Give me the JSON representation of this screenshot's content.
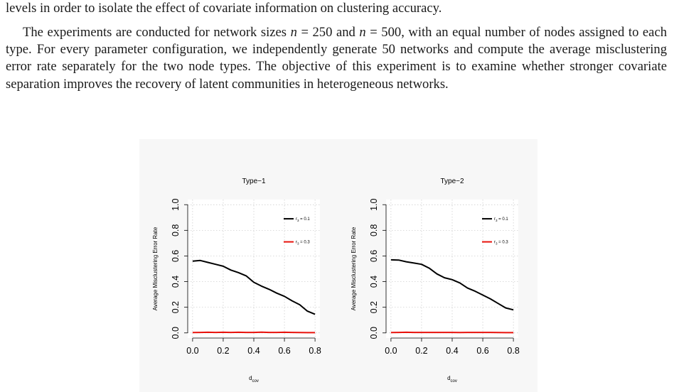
{
  "text": {
    "line1": "levels in order to isolate the effect of covariate information on clustering accuracy.",
    "p2_a": "The experiments are conducted for network sizes ",
    "p2_n": "n",
    "p2_eq": " = ",
    "p2_v1": "250",
    "p2_and": " and ",
    "p2_v2": "500",
    "p2_b": ", with an equal number of nodes assigned to each type. For every parameter configuration, we independently generate 50 networks and compute the average misclustering error rate separately for the two node types. The objective of this experiment is to examine whether stronger covariate separation improves the recovery of latent communities in heterogeneous networks."
  },
  "figure": {
    "ylabel": "Average Misclustering Error Rate",
    "xlabel_main": "d",
    "xlabel_sub": "cov"
  },
  "chart_data": [
    {
      "type": "line",
      "title": "Type−1",
      "xlabel": "d_cov",
      "ylabel": "Average Misclustering Error Rate",
      "xlim": [
        0,
        0.8
      ],
      "ylim": [
        0,
        1.0
      ],
      "xticks": [
        "0.0",
        "0.2",
        "0.4",
        "0.6",
        "0.8"
      ],
      "yticks": [
        "0.0",
        "0.2",
        "0.4",
        "0.6",
        "0.8",
        "1.0"
      ],
      "grid": true,
      "legend_position": "top-right",
      "x": [
        0.0,
        0.05,
        0.1,
        0.15,
        0.2,
        0.25,
        0.3,
        0.35,
        0.4,
        0.45,
        0.5,
        0.55,
        0.6,
        0.65,
        0.7,
        0.75,
        0.8
      ],
      "series": [
        {
          "legend_main": "r",
          "legend_sub": "3",
          "legend_rest": " = 0.1",
          "color": "#000000",
          "values": [
            0.56,
            0.565,
            0.55,
            0.535,
            0.52,
            0.49,
            0.47,
            0.445,
            0.395,
            0.365,
            0.34,
            0.31,
            0.285,
            0.25,
            0.22,
            0.17,
            0.145
          ]
        },
        {
          "legend_main": "r",
          "legend_sub": "3",
          "legend_rest": " = 0.3",
          "color": "#e8120c",
          "values": [
            0.003,
            0.004,
            0.005,
            0.004,
            0.005,
            0.004,
            0.005,
            0.004,
            0.004,
            0.006,
            0.004,
            0.004,
            0.005,
            0.004,
            0.003,
            0.002,
            0.002
          ]
        }
      ]
    },
    {
      "type": "line",
      "title": "Type−2",
      "xlabel": "d_cov",
      "ylabel": "Average Misclustering Error Rate",
      "xlim": [
        0,
        0.8
      ],
      "ylim": [
        0,
        1.0
      ],
      "xticks": [
        "0.0",
        "0.2",
        "0.4",
        "0.6",
        "0.8"
      ],
      "yticks": [
        "0.0",
        "0.2",
        "0.4",
        "0.6",
        "0.8",
        "1.0"
      ],
      "grid": true,
      "legend_position": "top-right",
      "x": [
        0.0,
        0.05,
        0.1,
        0.15,
        0.2,
        0.25,
        0.3,
        0.35,
        0.4,
        0.45,
        0.5,
        0.55,
        0.6,
        0.65,
        0.7,
        0.75,
        0.8
      ],
      "series": [
        {
          "legend_main": "r",
          "legend_sub": "3",
          "legend_rest": " = 0.1",
          "color": "#000000",
          "values": [
            0.57,
            0.568,
            0.555,
            0.545,
            0.535,
            0.505,
            0.46,
            0.43,
            0.415,
            0.39,
            0.35,
            0.325,
            0.295,
            0.265,
            0.23,
            0.195,
            0.18
          ]
        },
        {
          "legend_main": "r",
          "legend_sub": "3",
          "legend_rest": " = 0.3",
          "color": "#e8120c",
          "values": [
            0.003,
            0.004,
            0.005,
            0.004,
            0.004,
            0.004,
            0.004,
            0.004,
            0.004,
            0.003,
            0.004,
            0.004,
            0.004,
            0.004,
            0.003,
            0.002,
            0.002
          ]
        }
      ]
    }
  ]
}
